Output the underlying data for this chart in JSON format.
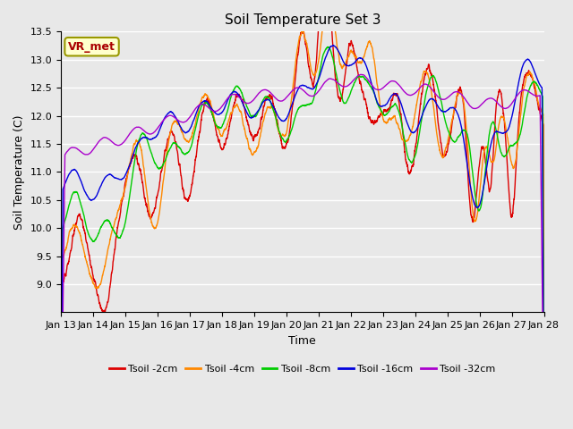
{
  "title": "Soil Temperature Set 3",
  "xlabel": "Time",
  "ylabel": "Soil Temperature (C)",
  "ylim": [
    8.5,
    13.5
  ],
  "xlim": [
    0,
    360
  ],
  "tick_labels": [
    "Jan 13",
    "Jan 14",
    "Jan 15",
    "Jan 16",
    "Jan 17",
    "Jan 18",
    "Jan 19",
    "Jan 20",
    "Jan 21",
    "Jan 22",
    "Jan 23",
    "Jan 24",
    "Jan 25",
    "Jan 26",
    "Jan 27",
    "Jan 28"
  ],
  "yticks": [
    9.0,
    9.5,
    10.0,
    10.5,
    11.0,
    11.5,
    12.0,
    12.5,
    13.0,
    13.5
  ],
  "colors": {
    "2cm": "#dd0000",
    "4cm": "#ff8800",
    "8cm": "#00cc00",
    "16cm": "#0000dd",
    "32cm": "#aa00cc"
  },
  "legend_labels": [
    "Tsoil -2cm",
    "Tsoil -4cm",
    "Tsoil -8cm",
    "Tsoil -16cm",
    "Tsoil -32cm"
  ],
  "bg_color": "#e8e8e8",
  "fig_bg": "#e8e8e8",
  "annotation_text": "VR_met",
  "annotation_color": "#aa0000",
  "annotation_bg": "#ffffcc",
  "annotation_border": "#999900",
  "title_fontsize": 11,
  "axis_label_fontsize": 9,
  "tick_fontsize": 8,
  "linewidth": 1.0
}
